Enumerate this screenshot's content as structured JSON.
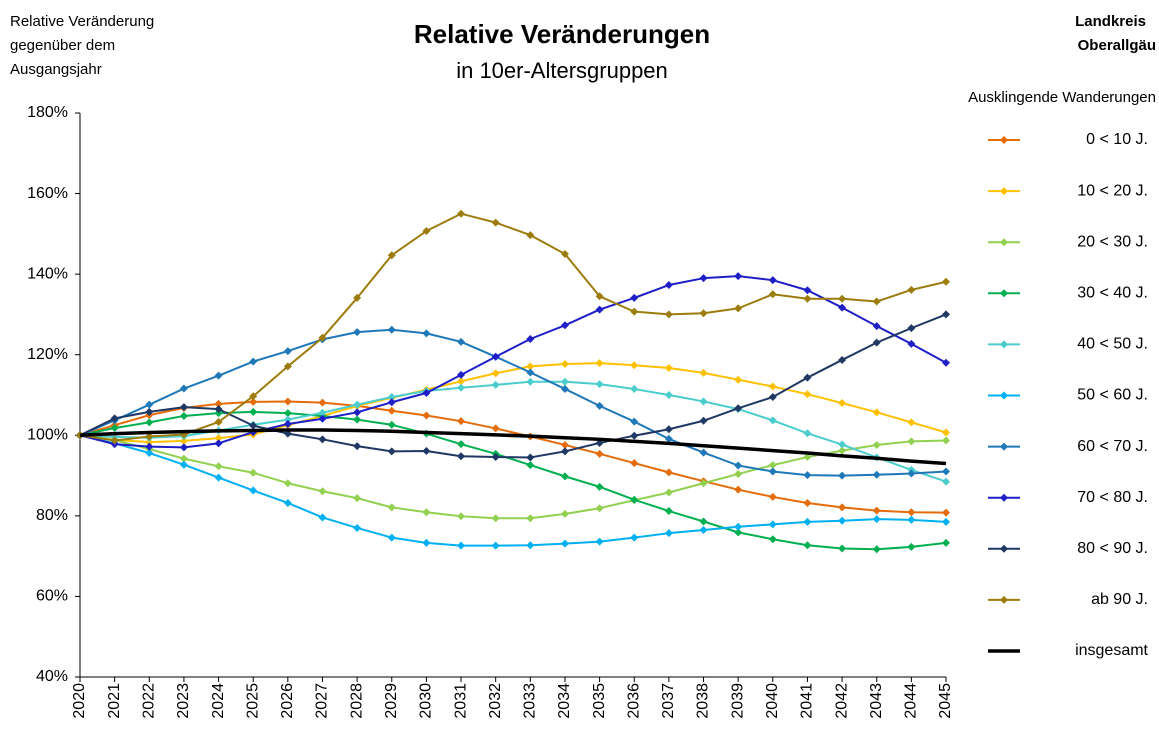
{
  "chart_data": {
    "type": "line",
    "title": "Relative Veränderungen",
    "subtitle": "in 10er-Altersgruppen",
    "y_label": [
      "Relative Veränderung",
      "gegenüber dem",
      "Ausgangsjahr"
    ],
    "region": [
      "Landkreis",
      "Oberallgäu"
    ],
    "legend_title": "Ausklingende Wanderungen",
    "legend_position": "right",
    "grid": false,
    "categories": [
      "2020",
      "2021",
      "2022",
      "2023",
      "2024",
      "2025",
      "2026",
      "2027",
      "2028",
      "2029",
      "2030",
      "2031",
      "2032",
      "2033",
      "2034",
      "2035",
      "2036",
      "2037",
      "2038",
      "2039",
      "2040",
      "2041",
      "2042",
      "2043",
      "2044",
      "2045"
    ],
    "ylim": [
      40,
      180
    ],
    "yticks": [
      {
        "value": 40,
        "label": "40%"
      },
      {
        "value": 60,
        "label": "60%"
      },
      {
        "value": 80,
        "label": "80%"
      },
      {
        "value": 100,
        "label": "100%"
      },
      {
        "value": 120,
        "label": "120%"
      },
      {
        "value": 140,
        "label": "140%"
      },
      {
        "value": 160,
        "label": "160%"
      },
      {
        "value": 180,
        "label": "180%"
      }
    ],
    "series": [
      {
        "name": "0 < 10 J.",
        "color": "#e46c0a",
        "marker": "diamond",
        "values": [
          100,
          102.5,
          105,
          106.8,
          107.8,
          108.3,
          108.4,
          108.1,
          107.3,
          106.1,
          104.9,
          103.5,
          101.7,
          99.7,
          97.6,
          95.4,
          93.1,
          90.8,
          88.6,
          86.5,
          84.7,
          83.2,
          82.1,
          81.3,
          80.9,
          80.8
        ]
      },
      {
        "name": "10 < 20 J.",
        "color": "#ffc000",
        "marker": "diamond",
        "values": [
          100,
          98.9,
          98.3,
          98.6,
          99.3,
          100.2,
          102.5,
          104.8,
          107.3,
          109.3,
          111.3,
          113.4,
          115.4,
          117.1,
          117.7,
          117.9,
          117.4,
          116.7,
          115.5,
          113.8,
          112.1,
          110.2,
          108,
          105.7,
          103.2,
          100.7
        ]
      },
      {
        "name": "20 < 30 J.",
        "color": "#92d050",
        "marker": "diamond",
        "values": [
          100,
          98.8,
          96.6,
          94.2,
          92.3,
          90.7,
          88.1,
          86.1,
          84.4,
          82.1,
          80.9,
          79.9,
          79.4,
          79.4,
          80.5,
          81.9,
          83.9,
          85.8,
          88.1,
          90.4,
          92.6,
          94.6,
          96.2,
          97.6,
          98.5,
          98.7
        ]
      },
      {
        "name": "30 < 40 J.",
        "color": "#00b050",
        "marker": "diamond",
        "values": [
          100,
          101.8,
          103.2,
          104.8,
          105.5,
          105.8,
          105.5,
          104.8,
          103.9,
          102.6,
          100.4,
          97.8,
          95.4,
          92.6,
          89.8,
          87.2,
          84,
          81.2,
          78.6,
          75.9,
          74.2,
          72.7,
          71.9,
          71.7,
          72.3,
          73.3
        ]
      },
      {
        "name": "40 < 50 J.",
        "color": "#4bcdcd",
        "marker": "diamond",
        "values": [
          100,
          99.6,
          99.4,
          99.8,
          101.2,
          102.6,
          103.9,
          105.6,
          107.6,
          109.5,
          111,
          111.8,
          112.5,
          113.3,
          113.3,
          112.7,
          111.5,
          110,
          108.4,
          106.5,
          103.7,
          100.5,
          97.7,
          94.5,
          91.4,
          88.5
        ]
      },
      {
        "name": "50 < 60 J.",
        "color": "#00b0f0",
        "marker": "diamond",
        "values": [
          100,
          98,
          95.6,
          92.7,
          89.5,
          86.3,
          83.2,
          79.6,
          77,
          74.6,
          73.3,
          72.6,
          72.6,
          72.7,
          73.1,
          73.6,
          74.6,
          75.7,
          76.5,
          77.3,
          77.9,
          78.5,
          78.8,
          79.2,
          79,
          78.5
        ]
      },
      {
        "name": "60 < 70 J.",
        "color": "#1f78b8",
        "marker": "diamond",
        "values": [
          100,
          103.7,
          107.6,
          111.6,
          114.8,
          118.3,
          120.9,
          123.8,
          125.6,
          126.2,
          125.3,
          123.2,
          119.5,
          115.6,
          111.5,
          107.3,
          103.4,
          99.1,
          95.7,
          92.5,
          91,
          90.1,
          90,
          90.2,
          90.5,
          91
        ]
      },
      {
        "name": "70 < 80 J.",
        "color": "#1f1fc8",
        "marker": "diamond",
        "values": [
          100,
          97.8,
          97.2,
          97,
          98,
          100.8,
          102.8,
          104.1,
          105.7,
          108.2,
          110.5,
          115,
          119.5,
          123.9,
          127.3,
          131.2,
          134.1,
          137.3,
          139,
          139.5,
          138.5,
          136,
          131.7,
          127.1,
          122.7,
          118
        ]
      },
      {
        "name": "80 < 90 J.",
        "color": "#1f3864",
        "marker": "diamond",
        "values": [
          100,
          104.2,
          105.8,
          107,
          106.5,
          102.4,
          100.4,
          99,
          97.3,
          96,
          96.1,
          94.8,
          94.6,
          94.5,
          96,
          98.1,
          99.9,
          101.5,
          103.6,
          106.7,
          109.5,
          114.3,
          118.7,
          123,
          126.6,
          130
        ]
      },
      {
        "name": "ab 90 J.",
        "color": "#9c7c0c",
        "marker": "diamond",
        "values": [
          100,
          98.7,
          99.7,
          100.2,
          103.3,
          109.7,
          117.1,
          124.2,
          134.1,
          144.7,
          150.7,
          155,
          152.8,
          149.7,
          145,
          134.5,
          130.7,
          130,
          130.3,
          131.5,
          135,
          133.9,
          133.9,
          133.2,
          136.1,
          138.1
        ]
      },
      {
        "name": "insgesamt",
        "color": "#000000",
        "line_width": 3.5,
        "values": [
          100,
          100.4,
          100.7,
          100.9,
          101.1,
          101.2,
          101.3,
          101.3,
          101.2,
          101,
          100.7,
          100.4,
          100.1,
          99.8,
          99.4,
          99,
          98.5,
          98,
          97.4,
          96.8,
          96.2,
          95.6,
          94.9,
          94.3,
          93.6,
          93
        ]
      }
    ]
  }
}
